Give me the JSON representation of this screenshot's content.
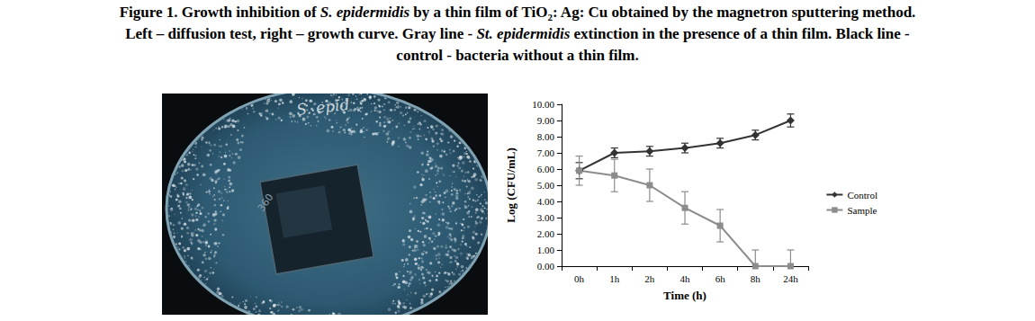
{
  "figure": {
    "caption": [
      [
        {
          "text": "Figure 1. Growth inhibition of "
        },
        {
          "text": "S. epidermidis",
          "format": "italic"
        },
        {
          "text": " by a thin film of TiO"
        },
        {
          "text": "2",
          "format": "subscript"
        },
        {
          "text": ": Ag: Cu obtained by the magnetron sputtering method."
        }
      ],
      [
        {
          "text": "Left – diffusion test, right – growth curve. Gray line - "
        },
        {
          "text": "St. epidermidis",
          "format": "italic"
        },
        {
          "text": " extinction in the presence of a thin film. Black line -"
        }
      ],
      [
        {
          "text": "control - bacteria without a thin film."
        }
      ]
    ],
    "photo": {
      "plate_label": "S. epid",
      "film_label": "360"
    }
  },
  "chart_data": {
    "type": "line",
    "x_label": "Time (h)",
    "y_label": "Log (CFU/mL)",
    "categories": [
      "0h",
      "1h",
      "2h",
      "4h",
      "6h",
      "8h",
      "24h"
    ],
    "series": [
      {
        "name": "Control",
        "color": "#333333",
        "marker": "diamond",
        "line_style": "solid",
        "values": [
          5.9,
          7.0,
          7.1,
          7.3,
          7.6,
          8.1,
          9.0
        ],
        "errors": [
          0.5,
          0.3,
          0.3,
          0.3,
          0.3,
          0.3,
          0.4
        ]
      },
      {
        "name": "Sample",
        "color": "#8c8c8c",
        "marker": "square",
        "line_style": "solid",
        "values": [
          5.9,
          5.6,
          5.0,
          3.6,
          2.5,
          0.0,
          0.0
        ],
        "errors": [
          0.9,
          1.0,
          1.0,
          1.0,
          1.0,
          1.0,
          1.0
        ]
      }
    ],
    "ylim": [
      0,
      10
    ],
    "yticks": [
      {
        "value": 0,
        "label": "0.00"
      },
      {
        "value": 1,
        "label": "1.00"
      },
      {
        "value": 2,
        "label": "2.00"
      },
      {
        "value": 3,
        "label": "3.00"
      },
      {
        "value": 4,
        "label": "4.00"
      },
      {
        "value": 5,
        "label": "5.00"
      },
      {
        "value": 6,
        "label": "6.00"
      },
      {
        "value": 7,
        "label": "7.00"
      },
      {
        "value": 8,
        "label": "8.00"
      },
      {
        "value": 9,
        "label": "9.00"
      },
      {
        "value": 10,
        "label": "10.00"
      }
    ],
    "grid": false,
    "legend": "right"
  }
}
